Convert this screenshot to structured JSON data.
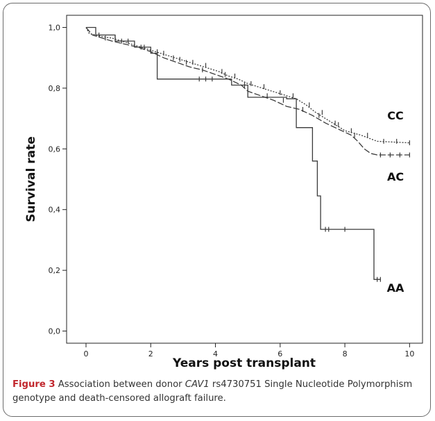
{
  "chart_data": {
    "type": "line",
    "title": "",
    "xlabel": "Years post transplant",
    "ylabel": "Survival rate",
    "xlim": [
      -0.6,
      10.4
    ],
    "ylim": [
      -0.04,
      1.04
    ],
    "x_ticks": [
      "0",
      "2",
      "4",
      "6",
      "8",
      "10"
    ],
    "y_ticks": [
      "0,0",
      "0,2",
      "0,4",
      "0,6",
      "0,8",
      "1,0"
    ],
    "grid": false,
    "legend": "series labels placed to the right of the curves",
    "series": [
      {
        "name": "CC",
        "style": "dotted",
        "color": "#3a3a3a",
        "points": [
          [
            0,
            1.0
          ],
          [
            0.1,
            0.98
          ],
          [
            0.3,
            0.975
          ],
          [
            0.5,
            0.97
          ],
          [
            0.8,
            0.965
          ],
          [
            1.1,
            0.955
          ],
          [
            1.4,
            0.945
          ],
          [
            1.7,
            0.935
          ],
          [
            2.0,
            0.925
          ],
          [
            2.3,
            0.915
          ],
          [
            2.6,
            0.905
          ],
          [
            2.9,
            0.895
          ],
          [
            3.2,
            0.885
          ],
          [
            3.5,
            0.875
          ],
          [
            3.8,
            0.865
          ],
          [
            4.1,
            0.855
          ],
          [
            4.4,
            0.84
          ],
          [
            4.7,
            0.83
          ],
          [
            5.0,
            0.815
          ],
          [
            5.3,
            0.805
          ],
          [
            5.6,
            0.795
          ],
          [
            5.9,
            0.785
          ],
          [
            6.2,
            0.775
          ],
          [
            6.5,
            0.765
          ],
          [
            6.8,
            0.745
          ],
          [
            7.1,
            0.72
          ],
          [
            7.4,
            0.7
          ],
          [
            7.7,
            0.68
          ],
          [
            8.0,
            0.66
          ],
          [
            8.5,
            0.645
          ],
          [
            9.0,
            0.625
          ],
          [
            10.0,
            0.62
          ]
        ],
        "censor_x": [
          0.4,
          0.9,
          1.3,
          1.8,
          2.4,
          2.9,
          3.3,
          3.7,
          4.2,
          4.6,
          5.1,
          5.5,
          6.0,
          6.4,
          6.9,
          7.3,
          7.8,
          8.2,
          8.7,
          9.2,
          9.6,
          10.0
        ]
      },
      {
        "name": "AC",
        "style": "dashed",
        "color": "#3a3a3a",
        "points": [
          [
            0,
            1.0
          ],
          [
            0.2,
            0.975
          ],
          [
            0.5,
            0.965
          ],
          [
            0.8,
            0.955
          ],
          [
            1.2,
            0.945
          ],
          [
            1.6,
            0.935
          ],
          [
            2.0,
            0.92
          ],
          [
            2.4,
            0.9
          ],
          [
            2.8,
            0.885
          ],
          [
            3.2,
            0.87
          ],
          [
            3.6,
            0.86
          ],
          [
            4.0,
            0.845
          ],
          [
            4.4,
            0.83
          ],
          [
            4.8,
            0.81
          ],
          [
            5.0,
            0.79
          ],
          [
            5.4,
            0.775
          ],
          [
            5.8,
            0.76
          ],
          [
            6.2,
            0.74
          ],
          [
            6.6,
            0.73
          ],
          [
            7.0,
            0.71
          ],
          [
            7.4,
            0.685
          ],
          [
            7.8,
            0.665
          ],
          [
            8.2,
            0.645
          ],
          [
            8.4,
            0.625
          ],
          [
            8.6,
            0.6
          ],
          [
            8.8,
            0.585
          ],
          [
            9.0,
            0.58
          ],
          [
            10.0,
            0.58
          ]
        ],
        "censor_x": [
          0.6,
          1.1,
          1.7,
          2.2,
          2.7,
          3.1,
          3.6,
          4.3,
          4.9,
          5.6,
          6.1,
          6.7,
          7.2,
          7.7,
          8.3,
          9.1,
          9.4,
          9.7,
          10.0
        ]
      },
      {
        "name": "AA",
        "style": "solid",
        "color": "#3a3a3a",
        "points": [
          [
            0,
            1.0
          ],
          [
            0.3,
            1.0
          ],
          [
            0.3,
            0.975
          ],
          [
            0.9,
            0.975
          ],
          [
            0.9,
            0.955
          ],
          [
            1.5,
            0.955
          ],
          [
            1.5,
            0.935
          ],
          [
            2.0,
            0.935
          ],
          [
            2.0,
            0.915
          ],
          [
            2.2,
            0.915
          ],
          [
            2.2,
            0.83
          ],
          [
            4.5,
            0.83
          ],
          [
            4.5,
            0.81
          ],
          [
            5.0,
            0.81
          ],
          [
            5.0,
            0.77
          ],
          [
            6.2,
            0.77
          ],
          [
            6.2,
            0.765
          ],
          [
            6.5,
            0.765
          ],
          [
            6.5,
            0.67
          ],
          [
            7.0,
            0.67
          ],
          [
            7.0,
            0.56
          ],
          [
            7.15,
            0.56
          ],
          [
            7.15,
            0.445
          ],
          [
            7.25,
            0.445
          ],
          [
            7.25,
            0.335
          ],
          [
            8.9,
            0.335
          ],
          [
            8.9,
            0.17
          ],
          [
            9.1,
            0.17
          ]
        ],
        "censor_x": [
          3.5,
          3.7,
          3.9,
          7.4,
          7.5,
          8.0,
          9.0,
          9.1
        ]
      }
    ]
  },
  "caption": {
    "label": "Figure 3",
    "text_before": " Association between donor ",
    "gene": "CAV1",
    "text_after": " rs4730751 Single Nucleotide Polymorphism genotype and death-censored allograft failure."
  }
}
